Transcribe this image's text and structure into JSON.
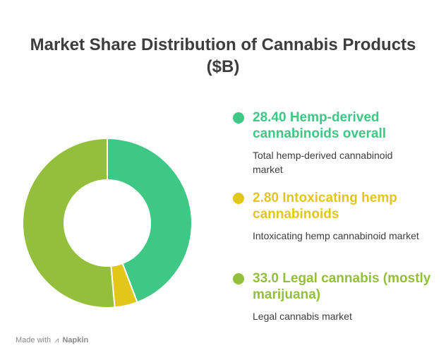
{
  "title": "Market Share Distribution of Cannabis Products ($B)",
  "chart_data": {
    "type": "pie",
    "variant": "donut",
    "title": "Market Share Distribution of Cannabis Products ($B)",
    "legend_position": "right",
    "series": [
      {
        "value": 28.4,
        "value_label": "28.40",
        "label": "Hemp-derived cannabinoids overall",
        "description": "Total hemp-derived cannabinoid market",
        "color": "#3ec785"
      },
      {
        "value": 2.8,
        "value_label": "2.80",
        "label": "Intoxicating hemp cannabinoids",
        "description": "Intoxicating hemp cannabinoid market",
        "color": "#e2c619"
      },
      {
        "value": 33.0,
        "value_label": "33.0",
        "label": "Legal cannabis (mostly marijuana)",
        "description": "Legal cannabis market",
        "color": "#93bf3c"
      }
    ]
  },
  "footer": {
    "prefix": "Made with",
    "brand": "Napkin",
    "logo_icon": "napkin-logo-icon"
  }
}
